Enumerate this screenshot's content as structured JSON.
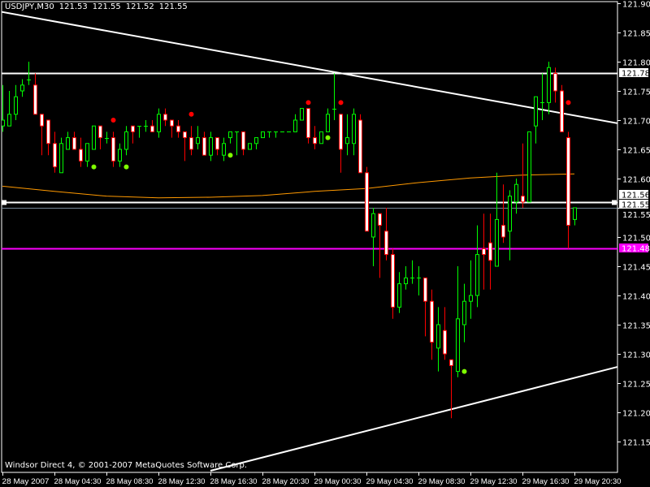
{
  "header": {
    "symbol": "USDJPY,M30",
    "open": "121.53",
    "high": "121.55",
    "low": "121.52",
    "close": "121.55"
  },
  "footer": "Windsor Direct 4, © 2001-2007 MetaQuotes Software Corp.",
  "colors": {
    "background": "#000000",
    "bull": "#00ff00",
    "bear": "#ff0000",
    "bear_body": "#ffffff",
    "bull_body": "#000000",
    "moving_average": "#ff9900",
    "magenta_line": "#ff00ff",
    "bid_line": "#778899",
    "lines": "#ffffff"
  },
  "chart_data": {
    "type": "candlestick",
    "symbol": "USDJPY",
    "timeframe": "M30",
    "ylim": [
      121.13,
      121.91
    ],
    "y_ticks": [
      "121.90",
      "121.85",
      "121.80",
      "121.75",
      "121.70",
      "121.65",
      "121.60",
      "121.55",
      "121.50",
      "121.45",
      "121.40",
      "121.35",
      "121.30",
      "121.25",
      "121.20",
      "121.15"
    ],
    "x_ticks": [
      "28 May 2007",
      "28 May 04:30",
      "28 May 08:30",
      "28 May 12:30",
      "28 May 16:30",
      "28 May 20:30",
      "29 May 00:30",
      "29 May 04:30",
      "29 May 08:30",
      "29 May 12:30",
      "29 May 16:30",
      "29 May 20:30"
    ],
    "ohlc_fields": [
      "open",
      "high",
      "low",
      "close"
    ],
    "bars": [
      [
        121.69,
        121.76,
        121.68,
        121.7
      ],
      [
        121.69,
        121.75,
        121.69,
        121.71
      ],
      [
        121.71,
        121.76,
        121.7,
        121.74
      ],
      [
        121.75,
        121.77,
        121.74,
        121.76
      ],
      [
        121.77,
        121.8,
        121.76,
        121.77
      ],
      [
        121.76,
        121.78,
        121.71,
        121.71
      ],
      [
        121.71,
        121.71,
        121.64,
        121.69
      ],
      [
        121.7,
        121.7,
        121.64,
        121.66
      ],
      [
        121.66,
        121.68,
        121.61,
        121.62
      ],
      [
        121.61,
        121.67,
        121.61,
        121.66
      ],
      [
        121.65,
        121.68,
        121.65,
        121.67
      ],
      [
        121.67,
        121.68,
        121.65,
        121.65
      ],
      [
        121.65,
        121.67,
        121.62,
        121.63
      ],
      [
        121.63,
        121.66,
        121.62,
        121.66
      ],
      [
        121.65,
        121.69,
        121.65,
        121.69
      ],
      [
        121.69,
        121.69,
        121.65,
        121.67
      ],
      [
        121.67,
        121.68,
        121.66,
        121.67
      ],
      [
        121.67,
        121.68,
        121.62,
        121.63
      ],
      [
        121.63,
        121.66,
        121.62,
        121.65
      ],
      [
        121.65,
        121.69,
        121.64,
        121.68
      ],
      [
        121.69,
        121.69,
        121.66,
        121.68
      ],
      [
        121.69,
        121.69,
        121.67,
        121.69
      ],
      [
        121.69,
        121.7,
        121.68,
        121.69
      ],
      [
        121.69,
        121.7,
        121.68,
        121.68
      ],
      [
        121.68,
        121.72,
        121.67,
        121.71
      ],
      [
        121.71,
        121.72,
        121.69,
        121.7
      ],
      [
        121.7,
        121.7,
        121.67,
        121.69
      ],
      [
        121.69,
        121.7,
        121.67,
        121.68
      ],
      [
        121.68,
        121.68,
        121.63,
        121.67
      ],
      [
        121.67,
        121.69,
        121.64,
        121.65
      ],
      [
        121.66,
        121.69,
        121.65,
        121.67
      ],
      [
        121.67,
        121.68,
        121.64,
        121.64
      ],
      [
        121.64,
        121.68,
        121.63,
        121.67
      ],
      [
        121.67,
        121.67,
        121.64,
        121.65
      ],
      [
        121.64,
        121.67,
        121.63,
        121.66
      ],
      [
        121.67,
        121.68,
        121.66,
        121.68
      ],
      [
        121.68,
        121.68,
        121.64,
        121.68
      ],
      [
        121.68,
        121.68,
        121.64,
        121.65
      ],
      [
        121.65,
        121.66,
        121.65,
        121.66
      ],
      [
        121.66,
        121.67,
        121.65,
        121.67
      ],
      [
        121.67,
        121.68,
        121.67,
        121.68
      ],
      [
        121.68,
        121.68,
        121.67,
        121.68
      ],
      [
        121.68,
        121.68,
        121.67,
        121.68
      ],
      [
        121.68,
        121.68,
        121.68,
        121.68
      ],
      [
        121.68,
        121.68,
        121.68,
        121.68
      ],
      [
        121.68,
        121.71,
        121.68,
        121.7
      ],
      [
        121.7,
        121.72,
        121.7,
        121.72
      ],
      [
        121.72,
        121.72,
        121.66,
        121.67
      ],
      [
        121.67,
        121.69,
        121.65,
        121.66
      ],
      [
        121.66,
        121.68,
        121.66,
        121.68
      ],
      [
        121.68,
        121.72,
        121.68,
        121.71
      ],
      [
        121.72,
        121.78,
        121.7,
        121.72
      ],
      [
        121.71,
        121.71,
        121.61,
        121.65
      ],
      [
        121.66,
        121.71,
        121.64,
        121.67
      ],
      [
        121.66,
        121.72,
        121.64,
        121.71
      ],
      [
        121.7,
        121.71,
        121.61,
        121.61
      ],
      [
        121.61,
        121.62,
        121.51,
        121.51
      ],
      [
        121.5,
        121.55,
        121.45,
        121.54
      ],
      [
        121.54,
        121.54,
        121.43,
        121.52
      ],
      [
        121.51,
        121.55,
        121.46,
        121.47
      ],
      [
        121.47,
        121.48,
        121.36,
        121.38
      ],
      [
        121.38,
        121.44,
        121.37,
        121.42
      ],
      [
        121.42,
        121.45,
        121.41,
        121.43
      ],
      [
        121.43,
        121.46,
        121.42,
        121.43
      ],
      [
        121.43,
        121.45,
        121.4,
        121.43
      ],
      [
        121.43,
        121.43,
        121.33,
        121.39
      ],
      [
        121.39,
        121.41,
        121.29,
        121.32
      ],
      [
        121.31,
        121.38,
        121.27,
        121.35
      ],
      [
        121.34,
        121.38,
        121.29,
        121.3
      ],
      [
        121.29,
        121.29,
        121.19,
        121.28
      ],
      [
        121.27,
        121.45,
        121.26,
        121.36
      ],
      [
        121.35,
        121.42,
        121.32,
        121.39
      ],
      [
        121.39,
        121.46,
        121.36,
        121.4
      ],
      [
        121.4,
        121.52,
        121.38,
        121.47
      ],
      [
        121.48,
        121.54,
        121.41,
        121.47
      ],
      [
        121.49,
        121.54,
        121.41,
        121.46
      ],
      [
        121.45,
        121.61,
        121.45,
        121.53
      ],
      [
        121.52,
        121.59,
        121.49,
        121.5
      ],
      [
        121.51,
        121.58,
        121.46,
        121.57
      ],
      [
        121.56,
        121.6,
        121.54,
        121.59
      ],
      [
        121.57,
        121.66,
        121.55,
        121.56
      ],
      [
        121.56,
        121.68,
        121.56,
        121.68
      ],
      [
        121.69,
        121.74,
        121.66,
        121.74
      ],
      [
        121.73,
        121.78,
        121.7,
        121.73
      ],
      [
        121.73,
        121.8,
        121.71,
        121.79
      ],
      [
        121.78,
        121.79,
        121.73,
        121.75
      ],
      [
        121.75,
        121.76,
        121.68,
        121.68
      ],
      [
        121.67,
        121.68,
        121.48,
        121.52
      ],
      [
        121.53,
        121.55,
        121.52,
        121.55
      ]
    ],
    "moving_average": [
      [
        "28 May 00:00",
        121.587
      ],
      [
        "28 May 04:00",
        121.578
      ],
      [
        "28 May 08:00",
        121.57
      ],
      [
        "28 May 12:00",
        121.567
      ],
      [
        "28 May 16:00",
        121.568
      ],
      [
        "28 May 20:00",
        121.571
      ],
      [
        "29 May 00:00",
        121.578
      ],
      [
        "29 May 04:00",
        121.583
      ],
      [
        "29 May 08:00",
        121.593
      ],
      [
        "29 May 12:00",
        121.601
      ],
      [
        "29 May 16:00",
        121.606
      ],
      [
        "29 May 20:00",
        121.608
      ]
    ],
    "markers_above": [
      [
        "28 May 08:30",
        121.7
      ],
      [
        "28 May 14:30",
        121.71
      ],
      [
        "28 May 23:30",
        121.73
      ],
      [
        "29 May 02:00",
        121.73
      ],
      [
        "29 May 19:30",
        121.73
      ]
    ],
    "markers_below": [
      [
        "28 May 07:00",
        121.62
      ],
      [
        "28 May 09:30",
        121.62
      ],
      [
        "28 May 17:30",
        121.64
      ],
      [
        "29 May 01:00",
        121.67
      ],
      [
        "29 May 11:30",
        121.27
      ]
    ],
    "trendlines": [
      {
        "from": [
          "28 May 00:00",
          121.885
        ],
        "to": [
          "29 May 20:00",
          121.708
        ],
        "ray": true
      },
      {
        "from": [
          "28 May 16:00",
          121.1
        ],
        "to": [
          "29 May 20:00",
          121.259
        ],
        "ray": true
      }
    ],
    "horizontal_lines": [
      {
        "price": "121.78",
        "label_style": "white"
      },
      {
        "price": "121.56",
        "label_style": "white"
      },
      {
        "price": "121.55",
        "label_style": "white",
        "kind": "bid"
      },
      {
        "price": "121.48",
        "label_style": "magenta"
      }
    ]
  }
}
